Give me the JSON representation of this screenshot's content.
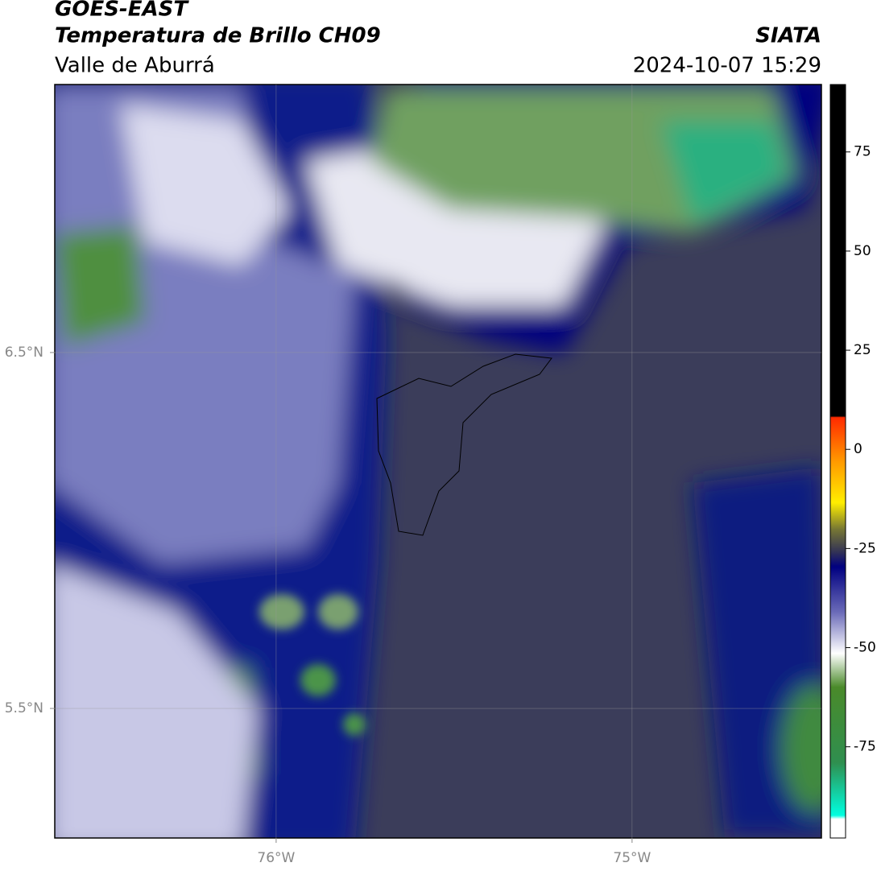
{
  "header": {
    "title": "GOES-EAST",
    "subtitle": "Temperatura de Brillo CH09",
    "region": "Valle de Aburrá",
    "source": "SIATA",
    "timestamp": "2024-10-07 15:29"
  },
  "map": {
    "xlim": [
      -76.622,
      -74.468
    ],
    "ylim": [
      5.136,
      7.253
    ],
    "xticks": [
      {
        "value": -76,
        "label": "76°W"
      },
      {
        "value": -75,
        "label": "75°W"
      }
    ],
    "yticks": [
      {
        "value": 5.5,
        "label": "5.5°N"
      },
      {
        "value": 6.5,
        "label": "6.5°N"
      }
    ],
    "grid": true
  },
  "colorbar": {
    "lim": [
      -98,
      92
    ],
    "ticks": [
      -75,
      -50,
      -25,
      0,
      25,
      50,
      75
    ]
  }
}
